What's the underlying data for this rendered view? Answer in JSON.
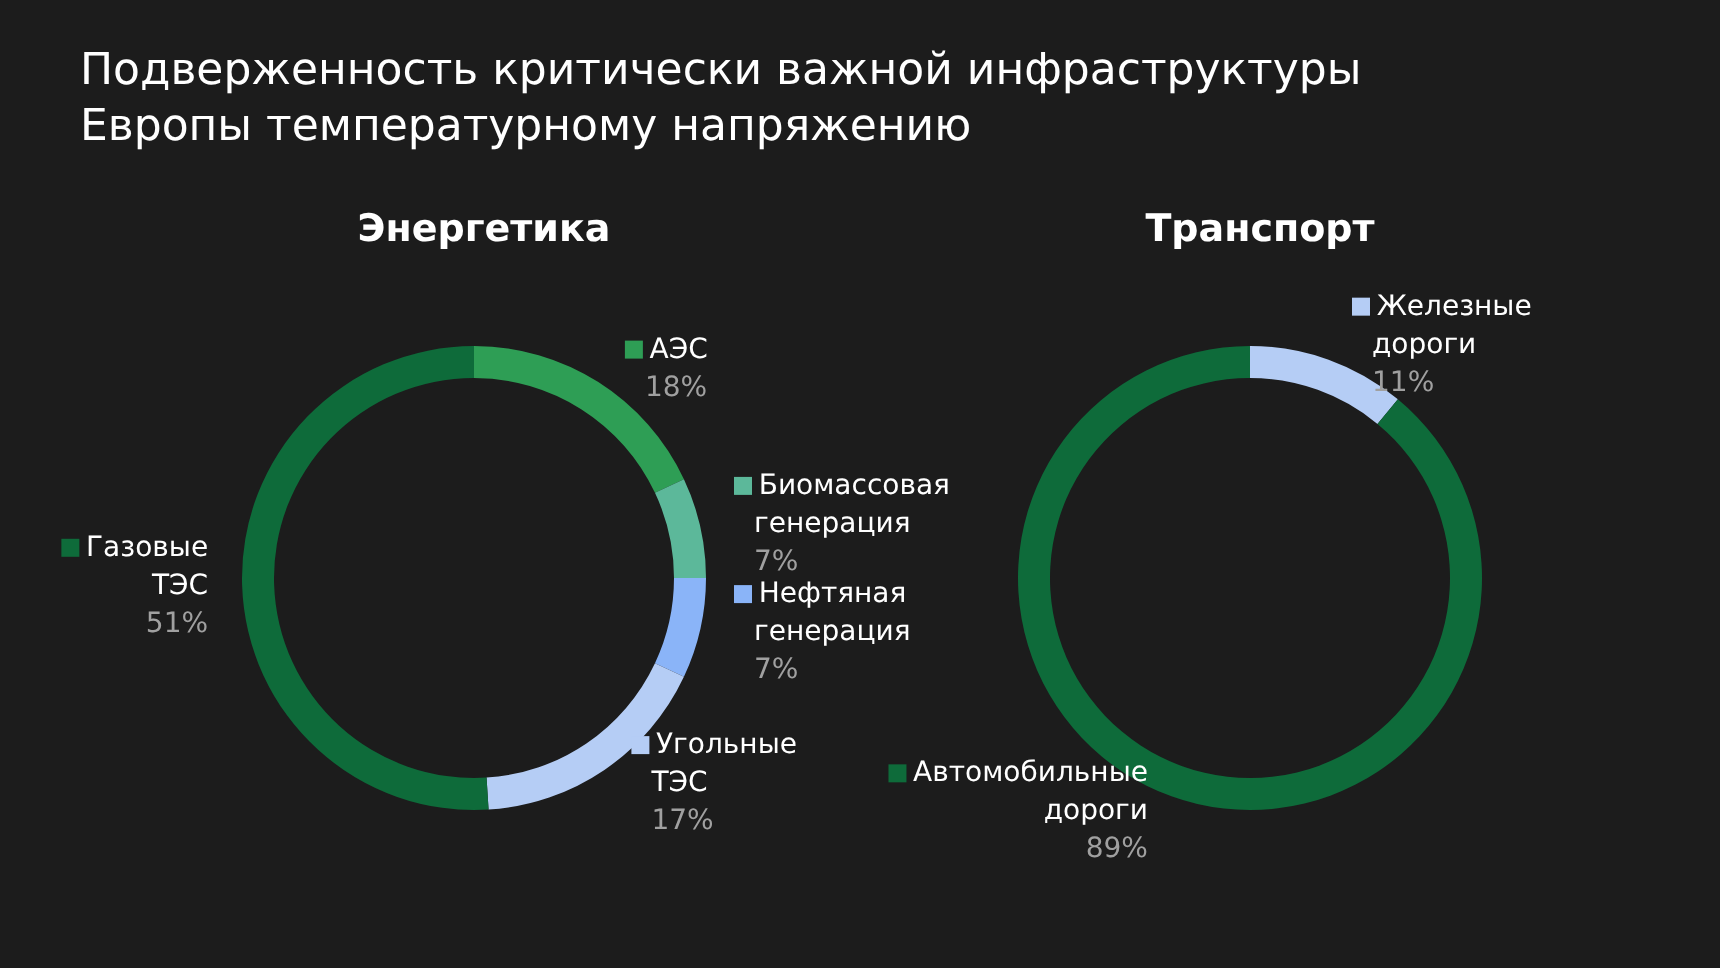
{
  "chart_data": [
    {
      "type": "donut",
      "title": "Подверженность критически важной инфраструктуры Европы температурному напряжению",
      "subtitle": "Энергетика",
      "categories": [
        "АЭС",
        "Биомассовая генерация",
        "Нефтяная генерация",
        "Угольные ТЭС",
        "Газовые ТЭС"
      ],
      "values": [
        18,
        7,
        7,
        17,
        51
      ],
      "value_labels": [
        "18%",
        "7%",
        "7%",
        "17%",
        "51%"
      ],
      "colors": [
        "#2e9e55",
        "#5cb89a",
        "#8ab4f8",
        "#b5cdf5",
        "#0e6b3a"
      ],
      "legend": "right"
    },
    {
      "type": "donut",
      "subtitle": "Транспорт",
      "categories": [
        "Железные дороги",
        "Автомобильные дороги"
      ],
      "values": [
        11,
        89
      ],
      "value_labels": [
        "11%",
        "89%"
      ],
      "colors": [
        "#b5cdf5",
        "#0e6b3a"
      ],
      "legend": "top left"
    }
  ]
}
